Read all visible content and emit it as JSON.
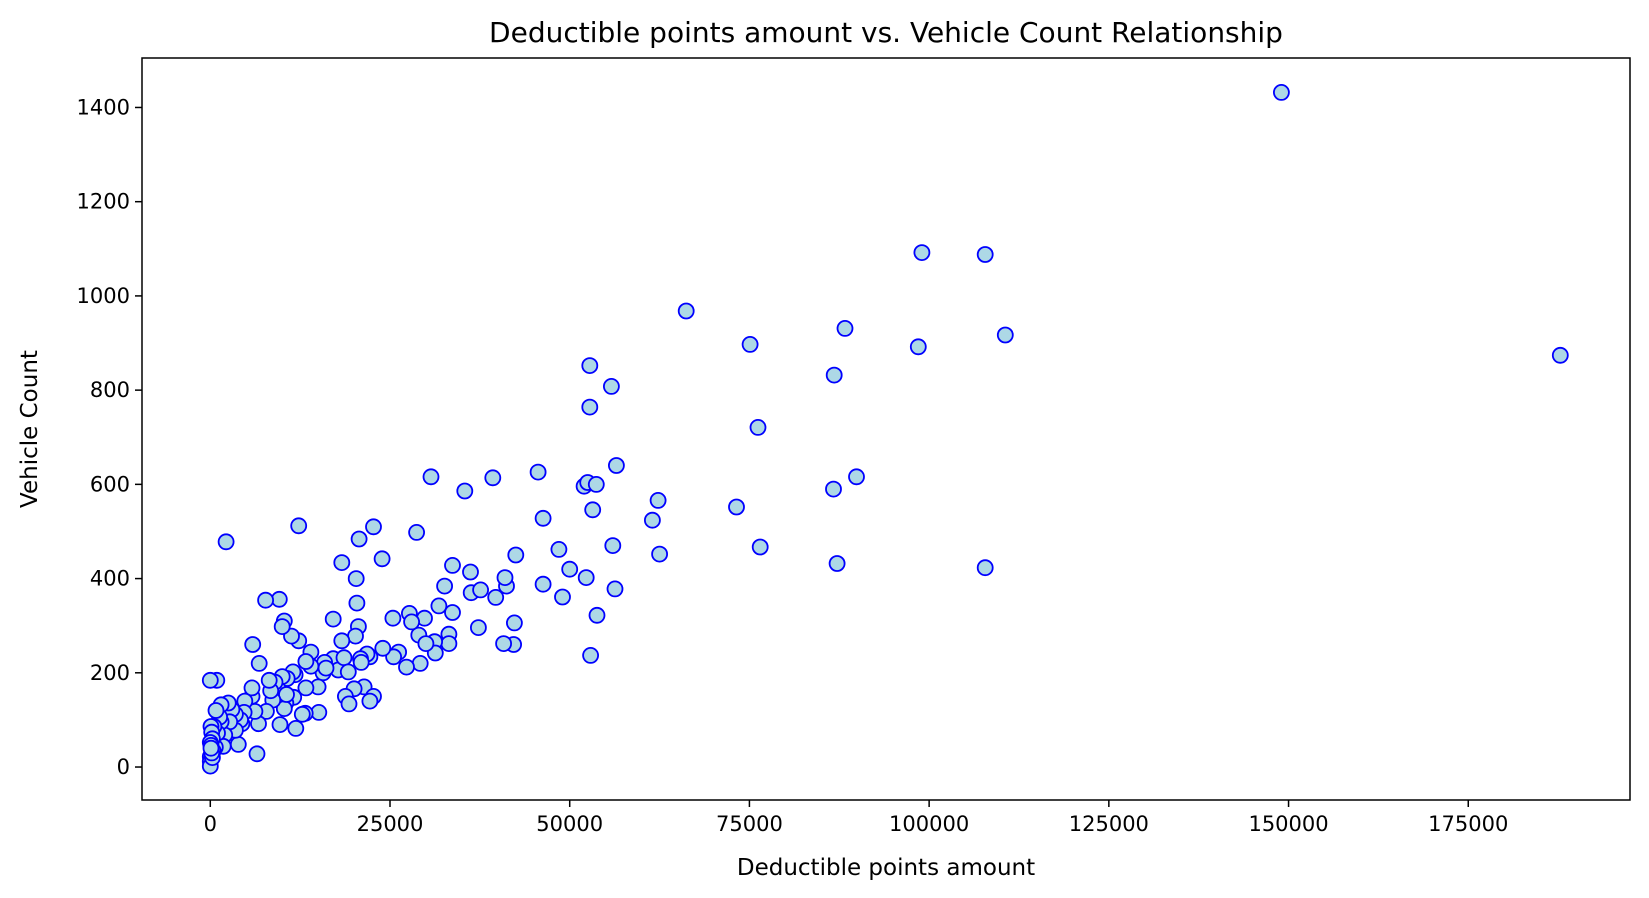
{
  "colors": {
    "marker_fill": "#add8e6",
    "marker_edge": "#0000ff",
    "axes": "#000000",
    "background": "#ffffff"
  },
  "chart_data": {
    "type": "scatter",
    "title": "Deductible points amount vs. Vehicle Count Relationship",
    "xlabel": "Deductible points amount",
    "ylabel": "Vehicle Count",
    "xlim": [
      -9500,
      197500
    ],
    "ylim": [
      -70,
      1505
    ],
    "xticks": [
      0,
      25000,
      50000,
      75000,
      100000,
      125000,
      150000,
      175000
    ],
    "yticks": [
      0,
      200,
      400,
      600,
      800,
      1000,
      1200,
      1400
    ],
    "grid": false,
    "legend": "none",
    "points": [
      [
        149000,
        1432
      ],
      [
        187800,
        874
      ],
      [
        99000,
        1092
      ],
      [
        107800,
        1088
      ],
      [
        66200,
        968
      ],
      [
        75100,
        897
      ],
      [
        88300,
        931
      ],
      [
        98500,
        892
      ],
      [
        110600,
        917
      ],
      [
        86800,
        832
      ],
      [
        52800,
        852
      ],
      [
        55800,
        808
      ],
      [
        52800,
        764
      ],
      [
        76200,
        721
      ],
      [
        56500,
        640
      ],
      [
        45600,
        626
      ],
      [
        62300,
        566
      ],
      [
        52000,
        596
      ],
      [
        52500,
        604
      ],
      [
        53700,
        600
      ],
      [
        61500,
        524
      ],
      [
        53200,
        546
      ],
      [
        73200,
        552
      ],
      [
        86700,
        590
      ],
      [
        89900,
        616
      ],
      [
        46300,
        528
      ],
      [
        56000,
        470
      ],
      [
        48500,
        462
      ],
      [
        76500,
        467
      ],
      [
        62500,
        452
      ],
      [
        42500,
        450
      ],
      [
        50000,
        420
      ],
      [
        52300,
        402
      ],
      [
        87200,
        432
      ],
      [
        107800,
        423
      ],
      [
        46300,
        388
      ],
      [
        49000,
        361
      ],
      [
        56300,
        378
      ],
      [
        53800,
        322
      ],
      [
        42300,
        306
      ],
      [
        42200,
        260
      ],
      [
        40800,
        262
      ],
      [
        52900,
        237
      ],
      [
        30700,
        616
      ],
      [
        35400,
        586
      ],
      [
        39300,
        614
      ],
      [
        41200,
        384
      ],
      [
        41000,
        402
      ],
      [
        39700,
        360
      ],
      [
        37300,
        296
      ],
      [
        36200,
        414
      ],
      [
        36300,
        370
      ],
      [
        37600,
        376
      ],
      [
        33700,
        428
      ],
      [
        32600,
        384
      ],
      [
        33700,
        328
      ],
      [
        31800,
        342
      ],
      [
        33200,
        282
      ],
      [
        33200,
        262
      ],
      [
        31200,
        266
      ],
      [
        31300,
        242
      ],
      [
        28700,
        498
      ],
      [
        29800,
        316
      ],
      [
        29000,
        280
      ],
      [
        30000,
        262
      ],
      [
        29200,
        220
      ],
      [
        27700,
        326
      ],
      [
        28000,
        308
      ],
      [
        27300,
        212
      ],
      [
        26200,
        244
      ],
      [
        25400,
        316
      ],
      [
        25500,
        234
      ],
      [
        24000,
        252
      ],
      [
        22700,
        510
      ],
      [
        23900,
        442
      ],
      [
        22200,
        234
      ],
      [
        21800,
        240
      ],
      [
        20900,
        230
      ],
      [
        20700,
        484
      ],
      [
        20300,
        400
      ],
      [
        20400,
        348
      ],
      [
        20600,
        298
      ],
      [
        20200,
        278
      ],
      [
        21000,
        222
      ],
      [
        21400,
        170
      ],
      [
        20000,
        166
      ],
      [
        22700,
        150
      ],
      [
        22200,
        140
      ],
      [
        18300,
        434
      ],
      [
        18300,
        268
      ],
      [
        17100,
        314
      ],
      [
        17100,
        230
      ],
      [
        17800,
        206
      ],
      [
        18600,
        232
      ],
      [
        19200,
        202
      ],
      [
        18800,
        150
      ],
      [
        19300,
        134
      ],
      [
        15700,
        200
      ],
      [
        15900,
        222
      ],
      [
        16100,
        210
      ],
      [
        15000,
        170
      ],
      [
        15100,
        116
      ],
      [
        14000,
        244
      ],
      [
        14000,
        214
      ],
      [
        13300,
        168
      ],
      [
        13300,
        224
      ],
      [
        13200,
        114
      ],
      [
        12800,
        112
      ],
      [
        12300,
        512
      ],
      [
        12300,
        268
      ],
      [
        11300,
        278
      ],
      [
        10300,
        310
      ],
      [
        10000,
        298
      ],
      [
        9600,
        356
      ],
      [
        7700,
        354
      ],
      [
        5900,
        260
      ],
      [
        6800,
        220
      ],
      [
        11800,
        196
      ],
      [
        11500,
        202
      ],
      [
        10700,
        188
      ],
      [
        10000,
        192
      ],
      [
        9500,
        164
      ],
      [
        11600,
        148
      ],
      [
        10500,
        136
      ],
      [
        10300,
        124
      ],
      [
        10600,
        154
      ],
      [
        11900,
        82
      ],
      [
        9700,
        90
      ],
      [
        9000,
        180
      ],
      [
        8700,
        142
      ],
      [
        8400,
        162
      ],
      [
        8200,
        184
      ],
      [
        7800,
        118
      ],
      [
        6700,
        92
      ],
      [
        6200,
        118
      ],
      [
        6500,
        28
      ],
      [
        5800,
        150
      ],
      [
        5800,
        168
      ],
      [
        4800,
        140
      ],
      [
        4700,
        116
      ],
      [
        4400,
        92
      ],
      [
        4200,
        100
      ],
      [
        3900,
        48
      ],
      [
        3500,
        78
      ],
      [
        3500,
        112
      ],
      [
        3000,
        122
      ],
      [
        2700,
        96
      ],
      [
        2500,
        136
      ],
      [
        2200,
        478
      ],
      [
        2000,
        68
      ],
      [
        1800,
        44
      ],
      [
        1500,
        96
      ],
      [
        1500,
        132
      ],
      [
        1300,
        106
      ],
      [
        1000,
        72
      ],
      [
        800,
        120
      ],
      [
        700,
        42
      ],
      [
        500,
        86
      ],
      [
        900,
        184
      ],
      [
        0,
        184
      ],
      [
        100,
        86
      ],
      [
        200,
        74
      ],
      [
        300,
        60
      ],
      [
        0,
        52
      ],
      [
        100,
        46
      ],
      [
        400,
        34
      ],
      [
        0,
        22
      ],
      [
        0,
        12
      ],
      [
        0,
        2
      ],
      [
        300,
        20
      ],
      [
        200,
        30
      ],
      [
        100,
        40
      ]
    ]
  }
}
